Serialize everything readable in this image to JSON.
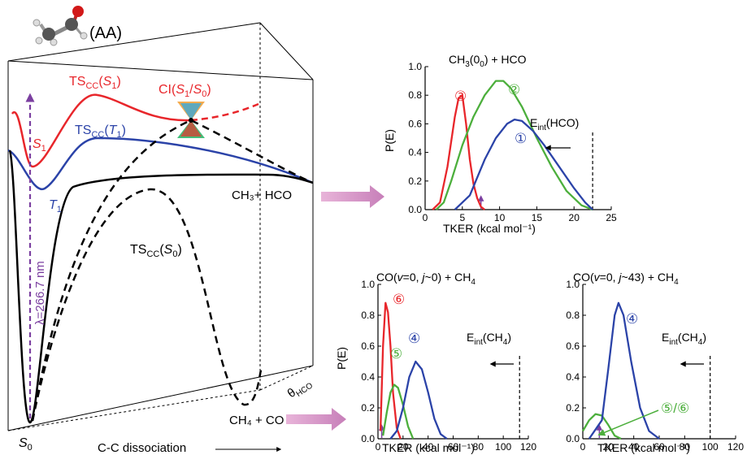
{
  "molecule_label": "(AA)",
  "pes": {
    "ts_s1": {
      "main": "TS",
      "sub": "CC",
      "arg": "S",
      "argsub": "1"
    },
    "ts_t1": {
      "main": "TS",
      "sub": "CC",
      "arg": "T",
      "argsub": "1"
    },
    "ts_s0": {
      "main": "TS",
      "sub": "CC",
      "arg": "S",
      "argsub": "0"
    },
    "ci": {
      "main": "CI(",
      "a": "S",
      "asub": "1",
      "slash": "/",
      "b": "S",
      "bsub": "0",
      "close": ")"
    },
    "s1": {
      "main": "S",
      "sub": "1"
    },
    "t1": {
      "main": "T",
      "sub": "1"
    },
    "s0": {
      "main": "S",
      "sub": "0"
    },
    "products_radical": "CH₃+ HCO",
    "products_molecular": "CH₄ + CO",
    "excitation": "λ=266.7 nm",
    "theta": {
      "main": "θ",
      "sub": "HCO"
    },
    "x_axis": "C-C dissociation",
    "colors": {
      "s1": "#e8262b",
      "t1": "#2b43a8",
      "s0": "#000000",
      "excite": "#7b3fa0",
      "arrow": "#c77fb9"
    }
  },
  "panels": {
    "top": {
      "title": {
        "pre": "CH",
        "sub1": "3",
        "mid": "(0",
        "sub2": "0",
        "post": ") + HCO"
      },
      "ylabel": "P(E)",
      "xlabel": "TKER (kcal mol⁻¹)",
      "eint": {
        "main": "E",
        "sub": "int",
        "post": "(HCO)"
      },
      "xticks": [
        "0",
        "5",
        "10",
        "15",
        "20",
        "25"
      ],
      "yticks": [
        "0.0",
        "0.2",
        "0.4",
        "0.6",
        "0.8",
        "1.0"
      ],
      "labels": [
        "③",
        "②",
        "①"
      ]
    },
    "bl": {
      "title": {
        "pre": "CO(",
        "v": "v",
        "eq": "=0, ",
        "j": "j",
        "rest": "~0) + CH",
        "sub": "4"
      },
      "ylabel": "P(E)",
      "xlabel": "TKER (kcal mol⁻¹)",
      "eint": {
        "main": "E",
        "sub": "int",
        "post": "(CH",
        "sub2": "4",
        "close": ")"
      },
      "xticks": [
        "0",
        "20",
        "40",
        "60",
        "80",
        "100",
        "120"
      ],
      "yticks": [
        "0.0",
        "0.2",
        "0.4",
        "0.6",
        "0.8",
        "1.0"
      ],
      "labels": [
        "⑥",
        "④",
        "⑤"
      ]
    },
    "br": {
      "title": {
        "pre": "CO(",
        "v": "v",
        "eq": "=0, ",
        "j": "j",
        "rest": "~43) + CH",
        "sub": "4"
      },
      "xlabel": "TKER (kcal mol⁻¹)",
      "eint": {
        "main": "E",
        "sub": "int",
        "post": "(CH",
        "sub2": "4",
        "close": ")"
      },
      "xticks": [
        "0",
        "20",
        "40",
        "60",
        "80",
        "100",
        "120"
      ],
      "yticks": [
        "0.0",
        "0.2",
        "0.4",
        "0.6",
        "0.8",
        "1.0"
      ],
      "labels": [
        "④",
        "⑤/⑥"
      ]
    }
  },
  "chart_data": [
    {
      "type": "line",
      "title": "CH3(00) + HCO",
      "xlabel": "TKER (kcal mol⁻¹)",
      "ylabel": "P(E)",
      "xlim": [
        0,
        25
      ],
      "ylim": [
        0,
        1.0
      ],
      "marker_x": 7.5,
      "eint_x": 22.5,
      "series": [
        {
          "name": "③",
          "color": "#e8262b",
          "x": [
            1,
            2,
            3,
            4,
            4.5,
            5,
            5.5,
            6,
            6.5,
            7,
            7.5,
            8
          ],
          "y": [
            0,
            0.05,
            0.3,
            0.65,
            0.78,
            0.8,
            0.6,
            0.35,
            0.18,
            0.08,
            0.02,
            0
          ]
        },
        {
          "name": "②",
          "color": "#4caf3c",
          "x": [
            1.5,
            2.5,
            3.5,
            5,
            6.5,
            8,
            9.5,
            10.5,
            11.5,
            13,
            15,
            17,
            19,
            21,
            22.5
          ],
          "y": [
            0,
            0.05,
            0.2,
            0.45,
            0.65,
            0.8,
            0.9,
            0.9,
            0.85,
            0.72,
            0.5,
            0.3,
            0.13,
            0.03,
            0
          ]
        },
        {
          "name": "①",
          "color": "#2b43a8",
          "x": [
            4,
            6,
            8,
            9.5,
            11,
            12,
            13,
            14.5,
            16,
            18,
            20,
            21.5,
            22.5
          ],
          "y": [
            0,
            0.1,
            0.35,
            0.5,
            0.6,
            0.63,
            0.62,
            0.55,
            0.45,
            0.3,
            0.15,
            0.05,
            0
          ]
        }
      ]
    },
    {
      "type": "line",
      "title": "CO(v=0, j~0) + CH4",
      "xlabel": "TKER (kcal mol⁻¹)",
      "ylabel": "P(E)",
      "xlim": [
        0,
        120
      ],
      "ylim": [
        0,
        1.0
      ],
      "marker_x": 3,
      "eint_x": 113,
      "series": [
        {
          "name": "⑥",
          "color": "#e8262b",
          "x": [
            2,
            4,
            6,
            8,
            10,
            12,
            15,
            18
          ],
          "y": [
            0.05,
            0.6,
            0.88,
            0.82,
            0.6,
            0.3,
            0.07,
            0
          ]
        },
        {
          "name": "⑤",
          "color": "#4caf3c",
          "x": [
            4,
            7,
            10,
            13,
            16,
            20,
            24,
            28
          ],
          "y": [
            0.02,
            0.17,
            0.3,
            0.35,
            0.33,
            0.22,
            0.08,
            0
          ]
        },
        {
          "name": "④",
          "color": "#2b43a8",
          "x": [
            10,
            15,
            20,
            25,
            30,
            35,
            40,
            45,
            50,
            55
          ],
          "y": [
            0,
            0.05,
            0.2,
            0.4,
            0.5,
            0.45,
            0.3,
            0.13,
            0.03,
            0
          ]
        }
      ]
    },
    {
      "type": "line",
      "title": "CO(v=0, j~43) + CH4",
      "xlabel": "TKER (kcal mol⁻¹)",
      "xlim": [
        0,
        120
      ],
      "ylim": [
        0,
        1.0
      ],
      "marker_x": 13,
      "eint_x": 100,
      "series": [
        {
          "name": "⑤/⑥",
          "color": "#4caf3c",
          "x": [
            0,
            5,
            10,
            15,
            20,
            25,
            30
          ],
          "y": [
            0.05,
            0.12,
            0.16,
            0.15,
            0.09,
            0.02,
            0
          ]
        },
        {
          "name": "④",
          "color": "#2b43a8",
          "x": [
            5,
            15,
            20,
            25,
            28,
            32,
            38,
            45,
            52,
            60
          ],
          "y": [
            0,
            0.12,
            0.45,
            0.8,
            0.88,
            0.8,
            0.5,
            0.2,
            0.05,
            0
          ]
        }
      ]
    }
  ]
}
